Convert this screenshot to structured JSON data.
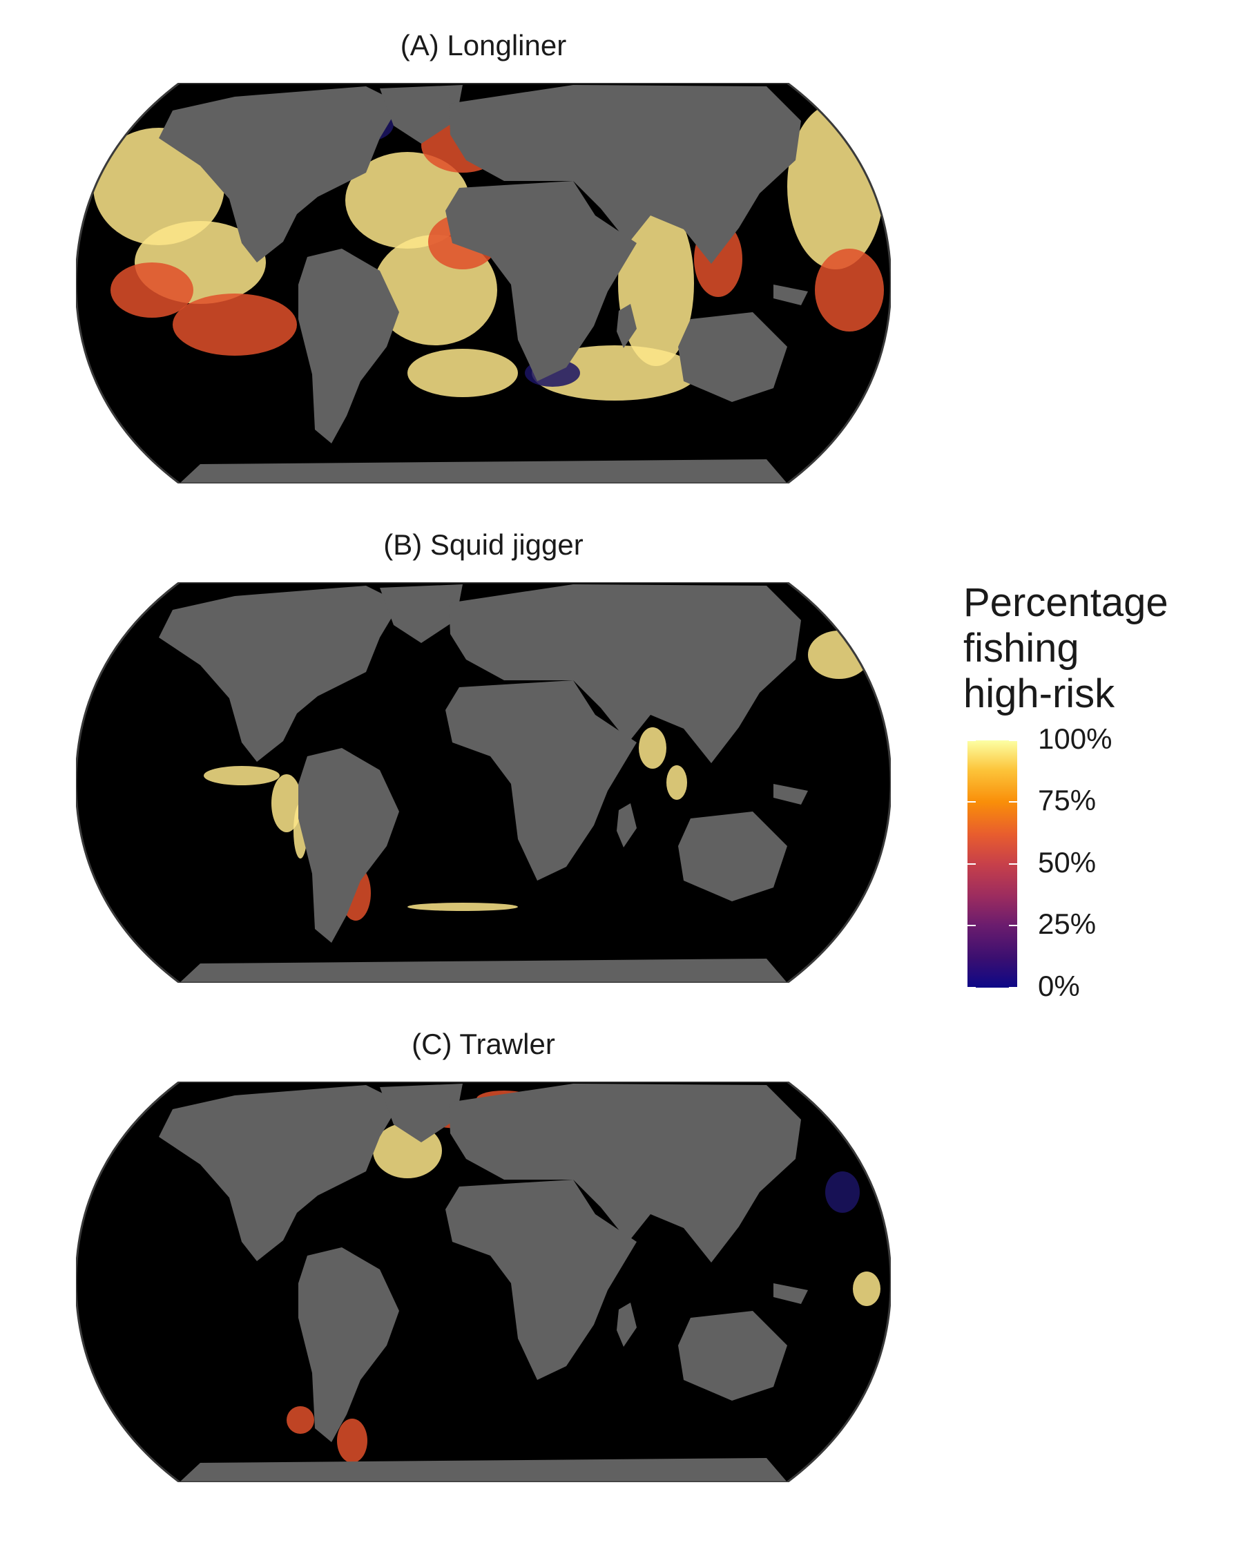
{
  "panels": [
    {
      "id": "A",
      "title": "(A) Longliner"
    },
    {
      "id": "B",
      "title": "(B) Squid jigger"
    },
    {
      "id": "C",
      "title": "(C) Trawler"
    }
  ],
  "legend": {
    "title_lines": [
      "Percentage",
      "fishing",
      "high-risk"
    ],
    "ticks": [
      {
        "label": "100%",
        "value": 1.0
      },
      {
        "label": "75%",
        "value": 0.75
      },
      {
        "label": "50%",
        "value": 0.5
      },
      {
        "label": "25%",
        "value": 0.25
      },
      {
        "label": "0%",
        "value": 0.0
      }
    ],
    "colormap": [
      "#0d0887",
      "#6a1c6e",
      "#c7404a",
      "#f98e09",
      "#fcffa4"
    ]
  },
  "colors": {
    "ocean": "#000000",
    "land": "#616161",
    "outline": "#3a3a3a",
    "low": "#1b1464",
    "mid": "#e0502a",
    "high": "#fde68a"
  }
}
